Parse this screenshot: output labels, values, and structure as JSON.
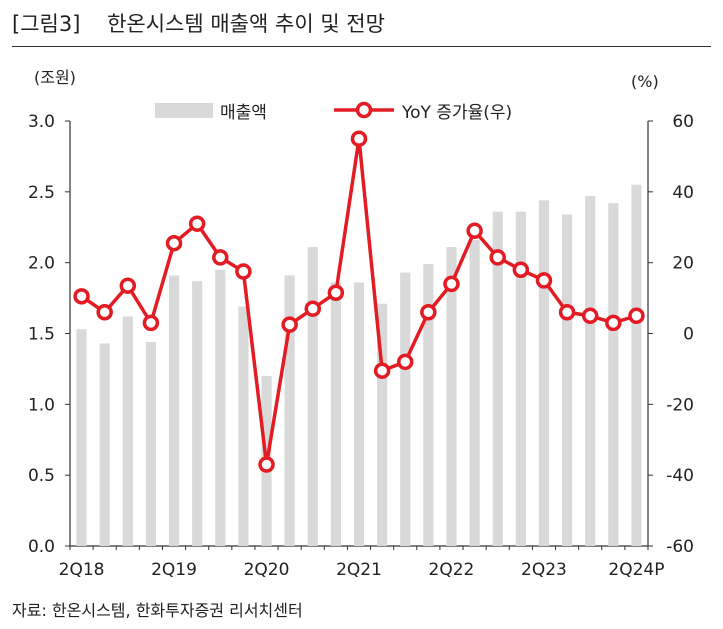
{
  "figure": {
    "title": "[그림3]    한온시스템 매출액 추이 및 전망",
    "source": "자료: 한온시스템, 한화투자증권 리서치센터"
  },
  "chart_data": {
    "type": "bar",
    "title": "[그림3] 한온시스템 매출액 추이 및 전망",
    "left_unit": "(조원)",
    "right_unit": "(%)",
    "left_ylim": [
      0,
      3
    ],
    "left_ticks": [
      "0.0",
      "0.5",
      "1.0",
      "1.5",
      "2.0",
      "2.5",
      "3.0"
    ],
    "right_ylim": [
      -60,
      60
    ],
    "right_ticks": [
      "-60",
      "-40",
      "-20",
      "0",
      "20",
      "40",
      "60"
    ],
    "x_tick_labels": [
      {
        "label": "2Q18",
        "index": 0
      },
      {
        "label": "2Q19",
        "index": 4
      },
      {
        "label": "2Q20",
        "index": 8
      },
      {
        "label": "2Q21",
        "index": 12
      },
      {
        "label": "2Q22",
        "index": 16
      },
      {
        "label": "2Q23",
        "index": 20
      },
      {
        "label": "2Q24P",
        "index": 24
      }
    ],
    "categories": [
      "2Q18",
      "3Q18",
      "4Q18",
      "1Q19",
      "2Q19",
      "3Q19",
      "4Q19",
      "1Q20",
      "2Q20",
      "3Q20",
      "4Q20",
      "1Q21",
      "2Q21",
      "3Q21",
      "4Q21",
      "1Q22",
      "2Q22",
      "3Q22",
      "4Q22",
      "1Q23",
      "2Q23",
      "3Q23",
      "4Q23",
      "1Q24",
      "2Q24P"
    ],
    "series": [
      {
        "name": "매출액",
        "type": "bar",
        "axis": "left",
        "color": "#d9d9d9",
        "values": [
          1.53,
          1.43,
          1.62,
          1.44,
          1.91,
          1.87,
          1.95,
          1.69,
          1.2,
          1.91,
          2.11,
          1.86,
          1.86,
          1.71,
          1.93,
          1.99,
          2.11,
          2.16,
          2.36,
          2.36,
          2.44,
          2.34,
          2.47,
          2.42,
          2.55
        ]
      },
      {
        "name": "YoY 증가율(우)",
        "type": "line",
        "axis": "right",
        "color": "#e31b23",
        "values": [
          10.5,
          6.0,
          13.5,
          3.0,
          25.5,
          31.0,
          21.5,
          17.5,
          -37.0,
          2.5,
          7.0,
          11.5,
          55.0,
          -10.5,
          -8.0,
          6.0,
          14.0,
          29.0,
          21.5,
          18.0,
          15.0,
          6.0,
          5.0,
          3.0,
          5.0
        ]
      }
    ]
  }
}
